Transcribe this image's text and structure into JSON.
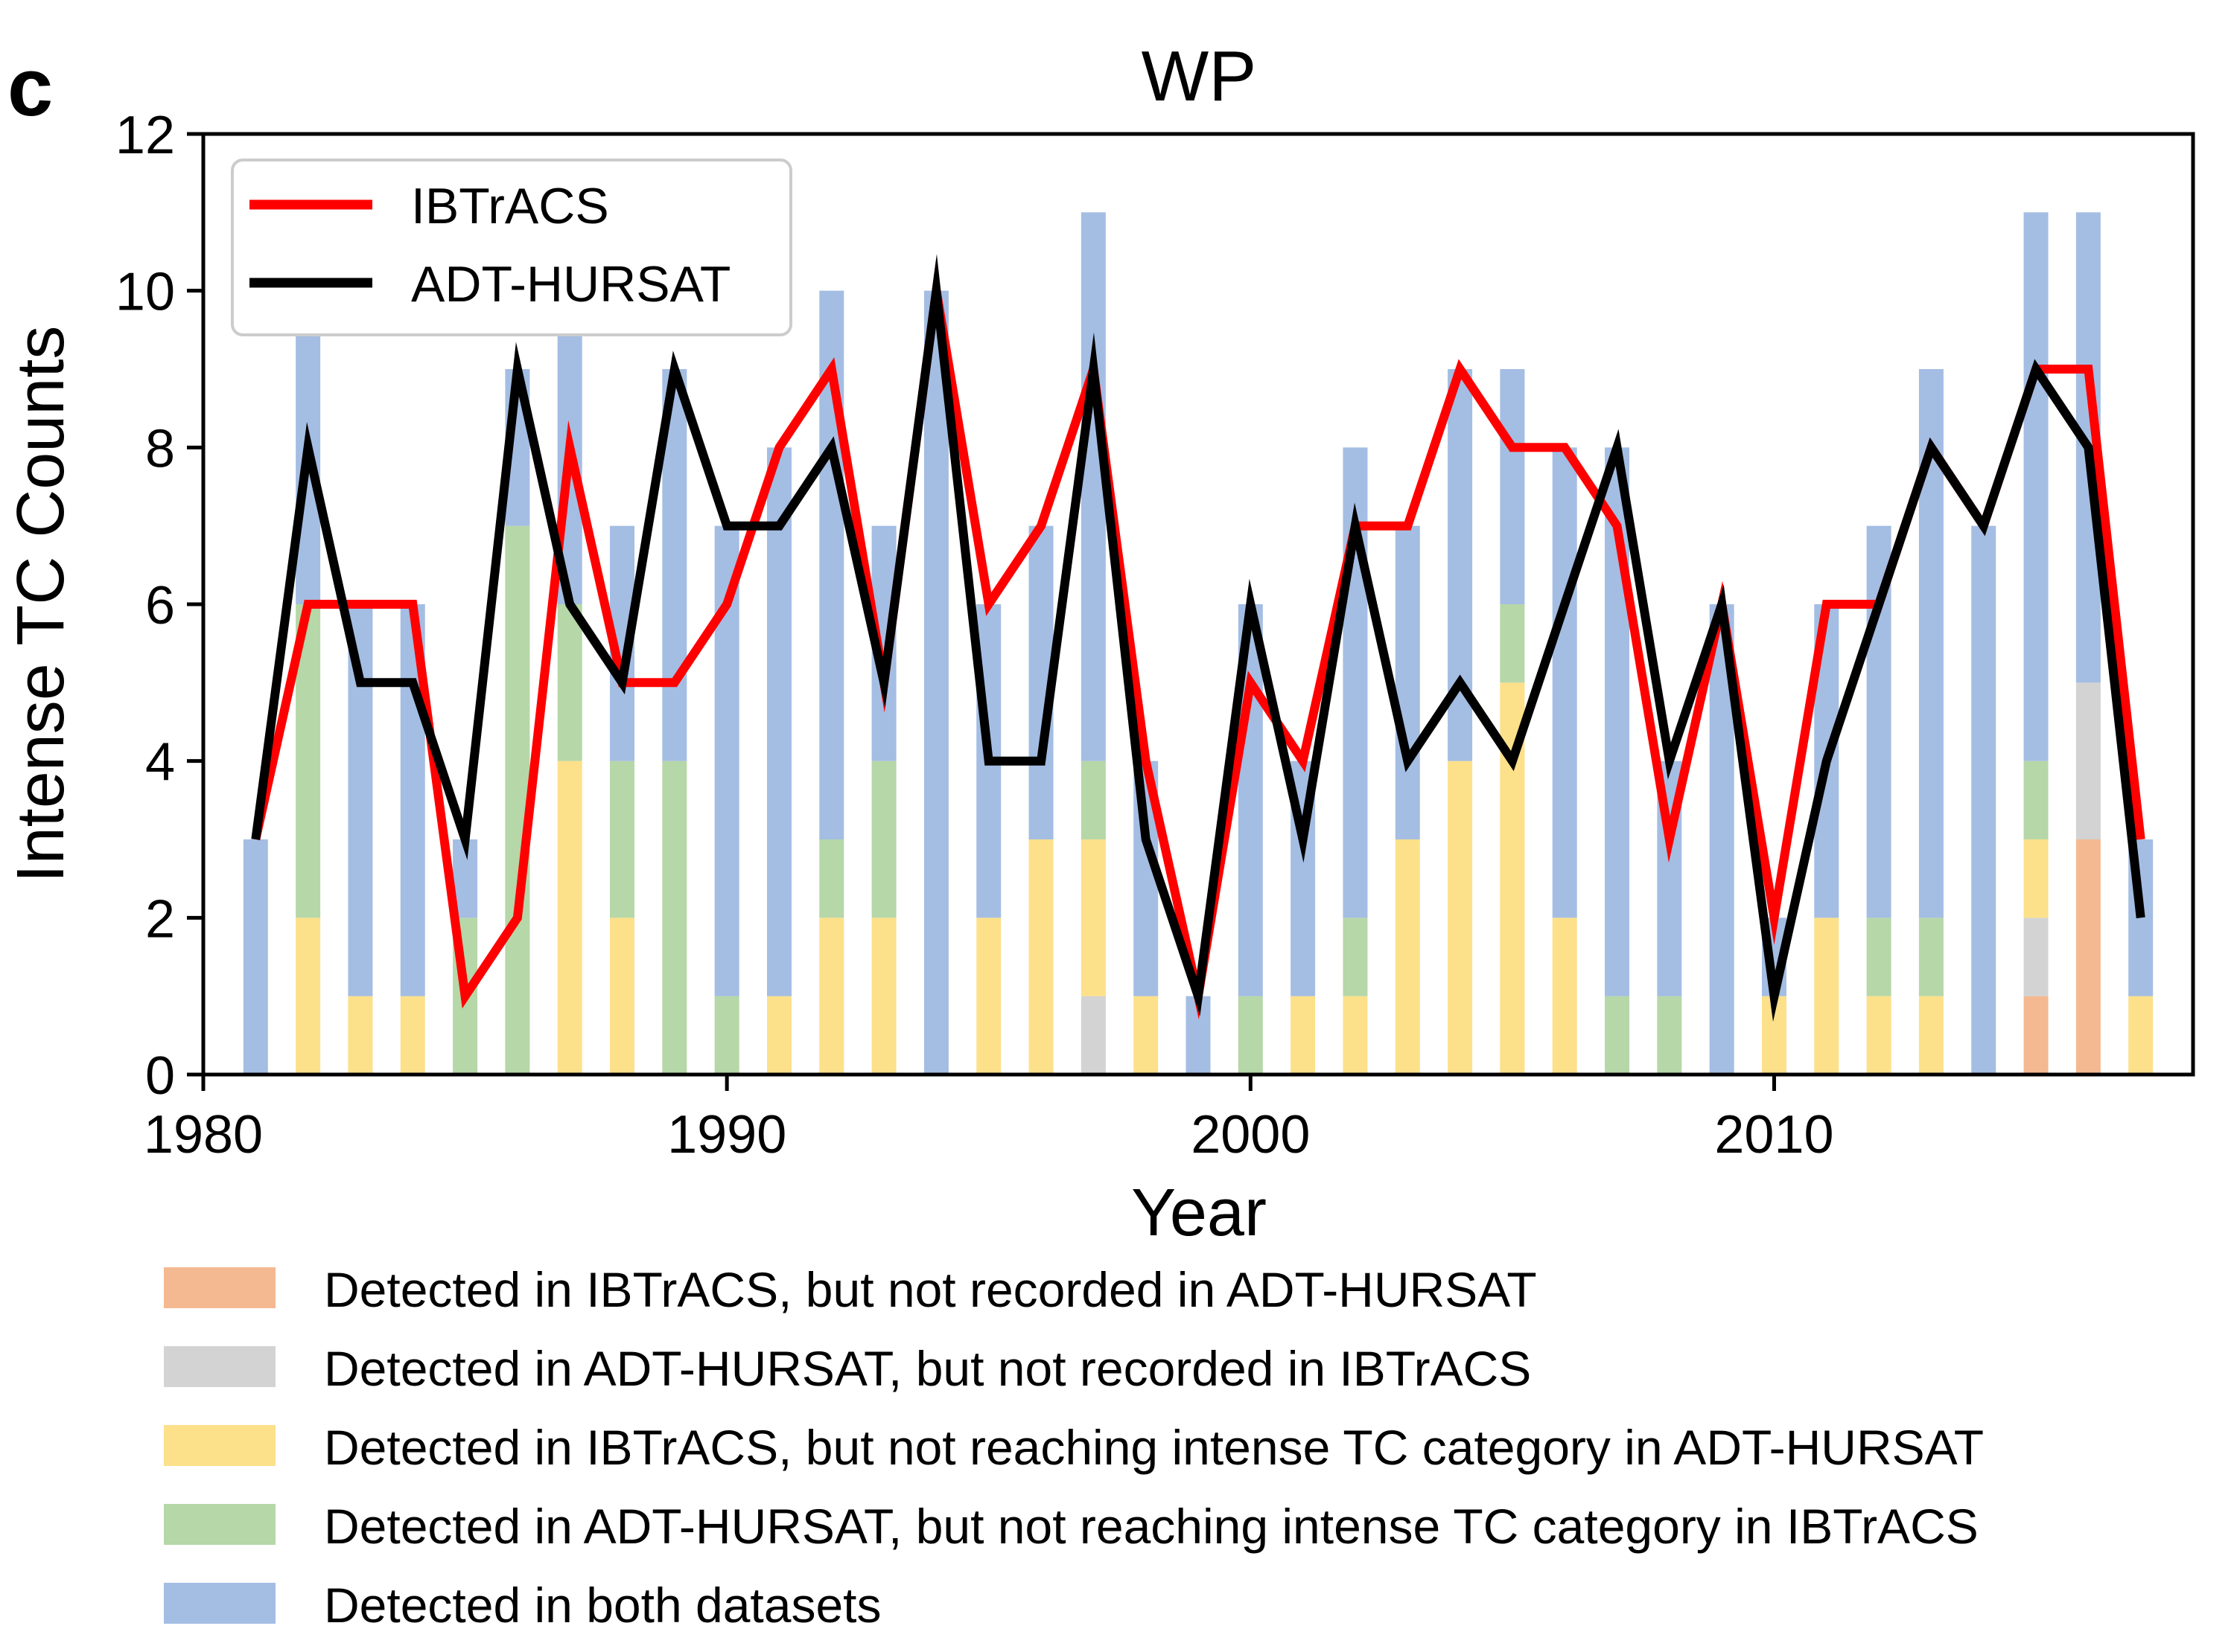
{
  "panel_label": "c",
  "chart_data": {
    "type": "bar",
    "title": "WP",
    "xlabel": "Year",
    "ylabel": "Intense TC Counts",
    "xlim": [
      1980,
      2018
    ],
    "ylim": [
      0,
      12
    ],
    "xticks": [
      "1980",
      "1990",
      "2000",
      "2010"
    ],
    "yticks": [
      "0",
      "2",
      "4",
      "6",
      "8",
      "10",
      "12"
    ],
    "grid": false,
    "stacked": true,
    "years": [
      1981,
      1982,
      1983,
      1984,
      1985,
      1986,
      1987,
      1988,
      1989,
      1990,
      1991,
      1992,
      1993,
      1994,
      1995,
      1996,
      1997,
      1998,
      1999,
      2000,
      2001,
      2002,
      2003,
      2004,
      2005,
      2006,
      2007,
      2008,
      2009,
      2010,
      2011,
      2012,
      2013,
      2014,
      2015,
      2016,
      2017
    ],
    "bar_series": [
      {
        "name": "Detected in IBTrACS, but not recorded in ADT-HURSAT",
        "color": "#f4b990",
        "values": [
          0,
          0,
          0,
          0,
          0,
          0,
          0,
          0,
          0,
          0,
          0,
          0,
          0,
          0,
          0,
          0,
          0,
          0,
          0,
          0,
          0,
          0,
          0,
          0,
          0,
          0,
          0,
          0,
          0,
          0,
          0,
          0,
          0,
          0,
          1,
          3,
          0
        ]
      },
      {
        "name": "Detected in ADT-HURSAT, but not recorded in IBTrACS",
        "color": "#d3d3d3",
        "values": [
          0,
          0,
          0,
          0,
          0,
          0,
          0,
          0,
          0,
          0,
          0,
          0,
          0,
          0,
          0,
          0,
          1,
          0,
          0,
          0,
          0,
          0,
          0,
          0,
          0,
          0,
          0,
          0,
          0,
          0,
          0,
          0,
          0,
          0,
          1,
          2,
          0
        ]
      },
      {
        "name": "Detected in IBTrACS, but not reaching intense TC category in ADT-HURSAT",
        "color": "#fde08a",
        "values": [
          0,
          2,
          1,
          1,
          0,
          0,
          4,
          2,
          0,
          0,
          1,
          2,
          2,
          0,
          2,
          3,
          2,
          1,
          0,
          0,
          1,
          1,
          3,
          4,
          5,
          2,
          0,
          0,
          0,
          1,
          2,
          1,
          1,
          0,
          1,
          0,
          1
        ]
      },
      {
        "name": "Detected in ADT-HURSAT, but not reaching intense TC category in IBTrACS",
        "color": "#b6d7a8",
        "values": [
          0,
          4,
          0,
          0,
          2,
          7,
          2,
          2,
          4,
          1,
          0,
          1,
          2,
          0,
          0,
          0,
          1,
          0,
          0,
          1,
          0,
          1,
          0,
          0,
          1,
          0,
          1,
          1,
          0,
          0,
          0,
          1,
          1,
          0,
          1,
          0,
          0
        ]
      },
      {
        "name": "Detected in both datasets",
        "color": "#a4bde3",
        "values": [
          3,
          4,
          5,
          5,
          1,
          2,
          4,
          3,
          5,
          6,
          7,
          7,
          3,
          10,
          4,
          4,
          7,
          3,
          1,
          5,
          3,
          6,
          4,
          5,
          3,
          6,
          7,
          3,
          6,
          1,
          4,
          5,
          7,
          7,
          7,
          6,
          2
        ]
      }
    ],
    "line_series": [
      {
        "name": "IBTrACS",
        "color": "#ff0000",
        "values": [
          3,
          6,
          6,
          6,
          1,
          2,
          8,
          5,
          5,
          6,
          8,
          9,
          5,
          10,
          6,
          7,
          9,
          4,
          1,
          5,
          4,
          7,
          7,
          9,
          8,
          8,
          7,
          3,
          6,
          2,
          6,
          6,
          8,
          7,
          9,
          9,
          3
        ]
      },
      {
        "name": "ADT-HURSAT",
        "color": "#000000",
        "values": [
          3,
          8,
          5,
          5,
          3,
          9,
          6,
          5,
          9,
          7,
          7,
          8,
          5,
          10,
          4,
          4,
          9,
          3,
          1,
          6,
          3,
          7,
          4,
          5,
          4,
          6,
          8,
          4,
          6,
          1,
          4,
          6,
          8,
          7,
          9,
          8,
          2
        ]
      }
    ]
  }
}
